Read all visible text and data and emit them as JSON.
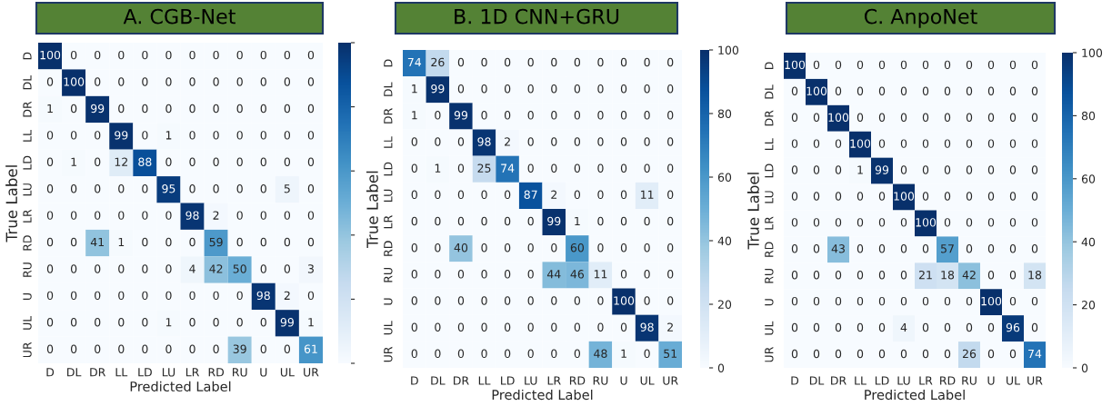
{
  "chart_data": [
    {
      "type": "heatmap",
      "title": "A. CGB-Net",
      "xlabel": "Predicted Label",
      "ylabel": "True Label",
      "categories": [
        "D",
        "DL",
        "DR",
        "LL",
        "LD",
        "LU",
        "LR",
        "RD",
        "RU",
        "U",
        "UL",
        "UR"
      ],
      "y_categories": [
        "D",
        "DL",
        "DR",
        "LL",
        "LD",
        "LU",
        "LR",
        "RD",
        "RU",
        "U",
        "UL",
        "UR"
      ],
      "cells": [
        [
          100,
          0,
          0,
          0,
          0,
          0,
          0,
          0,
          0,
          0,
          0,
          0
        ],
        [
          0,
          100,
          0,
          0,
          0,
          0,
          0,
          0,
          0,
          0,
          0,
          0
        ],
        [
          1,
          0,
          99,
          0,
          0,
          0,
          0,
          0,
          0,
          0,
          0,
          0
        ],
        [
          0,
          0,
          0,
          99,
          0,
          1,
          0,
          0,
          0,
          0,
          0,
          0
        ],
        [
          0,
          1,
          0,
          12,
          88,
          0,
          0,
          0,
          0,
          0,
          0,
          0
        ],
        [
          0,
          0,
          0,
          0,
          0,
          95,
          0,
          0,
          0,
          0,
          5,
          0
        ],
        [
          0,
          0,
          0,
          0,
          0,
          0,
          98,
          2,
          0,
          0,
          0,
          0
        ],
        [
          0,
          0,
          41,
          1,
          0,
          0,
          0,
          59,
          0,
          0,
          0,
          0
        ],
        [
          0,
          0,
          0,
          0,
          0,
          0,
          4,
          42,
          50,
          0,
          0,
          3
        ],
        [
          0,
          0,
          0,
          0,
          0,
          0,
          0,
          0,
          0,
          98,
          2,
          0
        ],
        [
          0,
          0,
          0,
          0,
          0,
          1,
          0,
          0,
          0,
          0,
          99,
          1
        ],
        [
          0,
          0,
          0,
          0,
          0,
          0,
          0,
          0,
          39,
          0,
          0,
          61
        ]
      ],
      "data_labels": true
    },
    {
      "type": "heatmap",
      "title": "B. 1D CNN+GRU",
      "xlabel": "Predicted Label",
      "ylabel": "True Label",
      "categories": [
        "D",
        "DL",
        "DR",
        "LL",
        "LD",
        "LU",
        "LR",
        "RD",
        "RU",
        "U",
        "UL",
        "UR"
      ],
      "y_categories": [
        "D",
        "DL",
        "DR",
        "LL",
        "LD",
        "LU",
        "LR",
        "RD",
        "RU",
        "U",
        "UL",
        "UR"
      ],
      "cells": [
        [
          74,
          26,
          0,
          0,
          0,
          0,
          0,
          0,
          0,
          0,
          0,
          0
        ],
        [
          1,
          99,
          0,
          0,
          0,
          0,
          0,
          0,
          0,
          0,
          0,
          0
        ],
        [
          1,
          0,
          99,
          0,
          0,
          0,
          0,
          0,
          0,
          0,
          0,
          0
        ],
        [
          0,
          0,
          0,
          98,
          2,
          0,
          0,
          0,
          0,
          0,
          0,
          0
        ],
        [
          0,
          1,
          0,
          25,
          74,
          0,
          0,
          0,
          0,
          0,
          0,
          0
        ],
        [
          0,
          0,
          0,
          0,
          0,
          87,
          2,
          0,
          0,
          0,
          11,
          0
        ],
        [
          0,
          0,
          0,
          0,
          0,
          0,
          99,
          1,
          0,
          0,
          0,
          0
        ],
        [
          0,
          0,
          40,
          0,
          0,
          0,
          0,
          60,
          0,
          0,
          0,
          0
        ],
        [
          0,
          0,
          0,
          0,
          0,
          0,
          44,
          46,
          11,
          0,
          0,
          0
        ],
        [
          0,
          0,
          0,
          0,
          0,
          0,
          0,
          0,
          0,
          100,
          0,
          0
        ],
        [
          0,
          0,
          0,
          0,
          0,
          0,
          0,
          0,
          0,
          0,
          98,
          2
        ],
        [
          0,
          0,
          0,
          0,
          0,
          0,
          0,
          0,
          48,
          1,
          0,
          51
        ]
      ],
      "clim": [
        0,
        100
      ],
      "cticks": [
        0,
        20,
        40,
        60,
        80,
        100
      ],
      "data_labels": true
    },
    {
      "type": "heatmap",
      "title": "C. AnpoNet",
      "xlabel": "Predicted Label",
      "ylabel": "True Label",
      "categories": [
        "D",
        "DL",
        "DR",
        "LL",
        "LD",
        "LU",
        "LR",
        "RD",
        "RU",
        "U",
        "UL",
        "UR"
      ],
      "y_categories": [
        "D",
        "DL",
        "DR",
        "LL",
        "LD",
        "LU",
        "LR",
        "RD",
        "RU",
        "U",
        "UL",
        "UR"
      ],
      "cells": [
        [
          100,
          0,
          0,
          0,
          0,
          0,
          0,
          0,
          0,
          0,
          0,
          0
        ],
        [
          0,
          100,
          0,
          0,
          0,
          0,
          0,
          0,
          0,
          0,
          0,
          0
        ],
        [
          0,
          0,
          100,
          0,
          0,
          0,
          0,
          0,
          0,
          0,
          0,
          0
        ],
        [
          0,
          0,
          0,
          100,
          0,
          0,
          0,
          0,
          0,
          0,
          0,
          0
        ],
        [
          0,
          0,
          0,
          1,
          99,
          0,
          0,
          0,
          0,
          0,
          0,
          0
        ],
        [
          0,
          0,
          0,
          0,
          0,
          100,
          0,
          0,
          0,
          0,
          0,
          0
        ],
        [
          0,
          0,
          0,
          0,
          0,
          0,
          100,
          0,
          0,
          0,
          0,
          0
        ],
        [
          0,
          0,
          43,
          0,
          0,
          0,
          0,
          57,
          0,
          0,
          0,
          0
        ],
        [
          0,
          0,
          0,
          0,
          0,
          0,
          21,
          18,
          42,
          0,
          0,
          18
        ],
        [
          0,
          0,
          0,
          0,
          0,
          0,
          0,
          0,
          0,
          100,
          0,
          0
        ],
        [
          0,
          0,
          0,
          0,
          0,
          4,
          0,
          0,
          0,
          0,
          96,
          0
        ],
        [
          0,
          0,
          0,
          0,
          0,
          0,
          0,
          0,
          26,
          0,
          0,
          74
        ]
      ],
      "clim": [
        0,
        100
      ],
      "cticks": [
        0,
        20,
        40,
        60,
        80,
        100
      ],
      "data_labels": true
    }
  ]
}
